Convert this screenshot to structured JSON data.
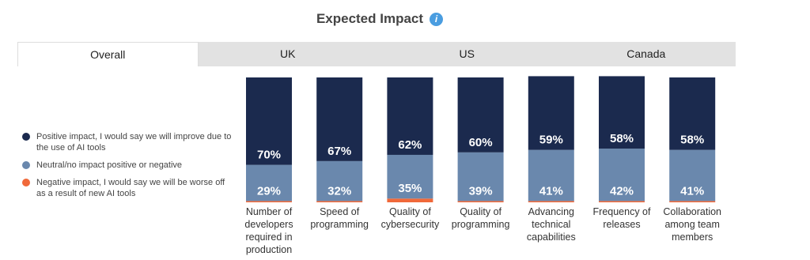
{
  "tabs": [
    "Overall",
    "UK",
    "US",
    "Canada"
  ],
  "chart_data": {
    "type": "stacked_bar",
    "title": "Expected Impact",
    "categories": [
      "Number of developers required in production",
      "Speed of programming",
      "Quality of cybersecurity",
      "Quality of programming",
      "Advancing technical capabilities",
      "Frequency of releases",
      "Collaboration among team members"
    ],
    "series": [
      {
        "name": "Positive impact, I would say we will improve due to the use of AI tools",
        "color": "#1b2a4e",
        "values": [
          70,
          67,
          62,
          60,
          59,
          58,
          58
        ],
        "value_labels": [
          "70%",
          "67%",
          "62%",
          "60%",
          "59%",
          "58%",
          "58%"
        ]
      },
      {
        "name": "Neutral/no impact positive or negative",
        "color": "#6a88ad",
        "values": [
          29,
          32,
          35,
          39,
          41,
          42,
          41
        ],
        "value_labels": [
          "29%",
          "32%",
          "35%",
          "39%",
          "41%",
          "42%",
          "41%"
        ]
      },
      {
        "name": "Negative impact, I would say we will be worse off as a result of new AI tools",
        "color": "#f0693a",
        "values": [
          1,
          1,
          3,
          1,
          1,
          1,
          1
        ]
      }
    ]
  }
}
